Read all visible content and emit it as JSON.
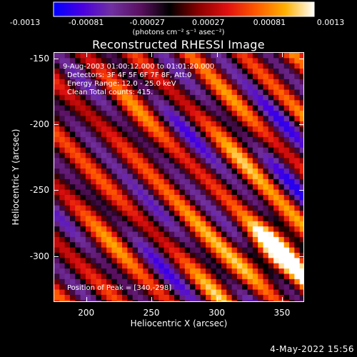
{
  "colorbar": {
    "tick_labels": [
      "-0.0013",
      "-0.00081",
      "-0.00027",
      "0.00027",
      "0.00081",
      "0.0013"
    ],
    "units": "(photons cm⁻² s⁻¹ asec⁻²)",
    "colors": [
      "#0000ff",
      "#4a00e0",
      "#7030a0",
      "#5a1060",
      "#000000",
      "#8a0000",
      "#e01010",
      "#ff5a00",
      "#ffb000",
      "#ffffff"
    ]
  },
  "chart_data": {
    "type": "heatmap",
    "title": "Reconstructed RHESSI Image",
    "xlabel": "Heliocentric X (arcsec)",
    "ylabel": "Heliocentric Y (arcsec)",
    "xlim": [
      175,
      367
    ],
    "ylim": [
      -335,
      -145
    ],
    "x_ticks": [
      200,
      250,
      300,
      350
    ],
    "y_ticks": [
      -150,
      -200,
      -250,
      -300
    ],
    "x_tick_labels": [
      "200",
      "250",
      "300",
      "350"
    ],
    "y_tick_labels": [
      "-150",
      "-200",
      "-250",
      "-300"
    ],
    "colorbar_range": [
      -0.0013,
      0.0013
    ],
    "peak": [
      340,
      -298
    ],
    "colormap": "blue-purple-black-red-yellow-white"
  },
  "annotations": {
    "time_range": "9-Aug-2003 01:00:12.000 to 01:01:20.000",
    "detectors": "Detectors: 3F 4F 5F 6F 7F 8F, Att:0",
    "energy": "Energy Range: 12.0 - 25.0 keV",
    "clean": "Clean     Total counts: 415.",
    "peak_text": "Position of Peak = [340,-298]"
  },
  "footer": {
    "timestamp": "4-May-2022 15:56"
  }
}
